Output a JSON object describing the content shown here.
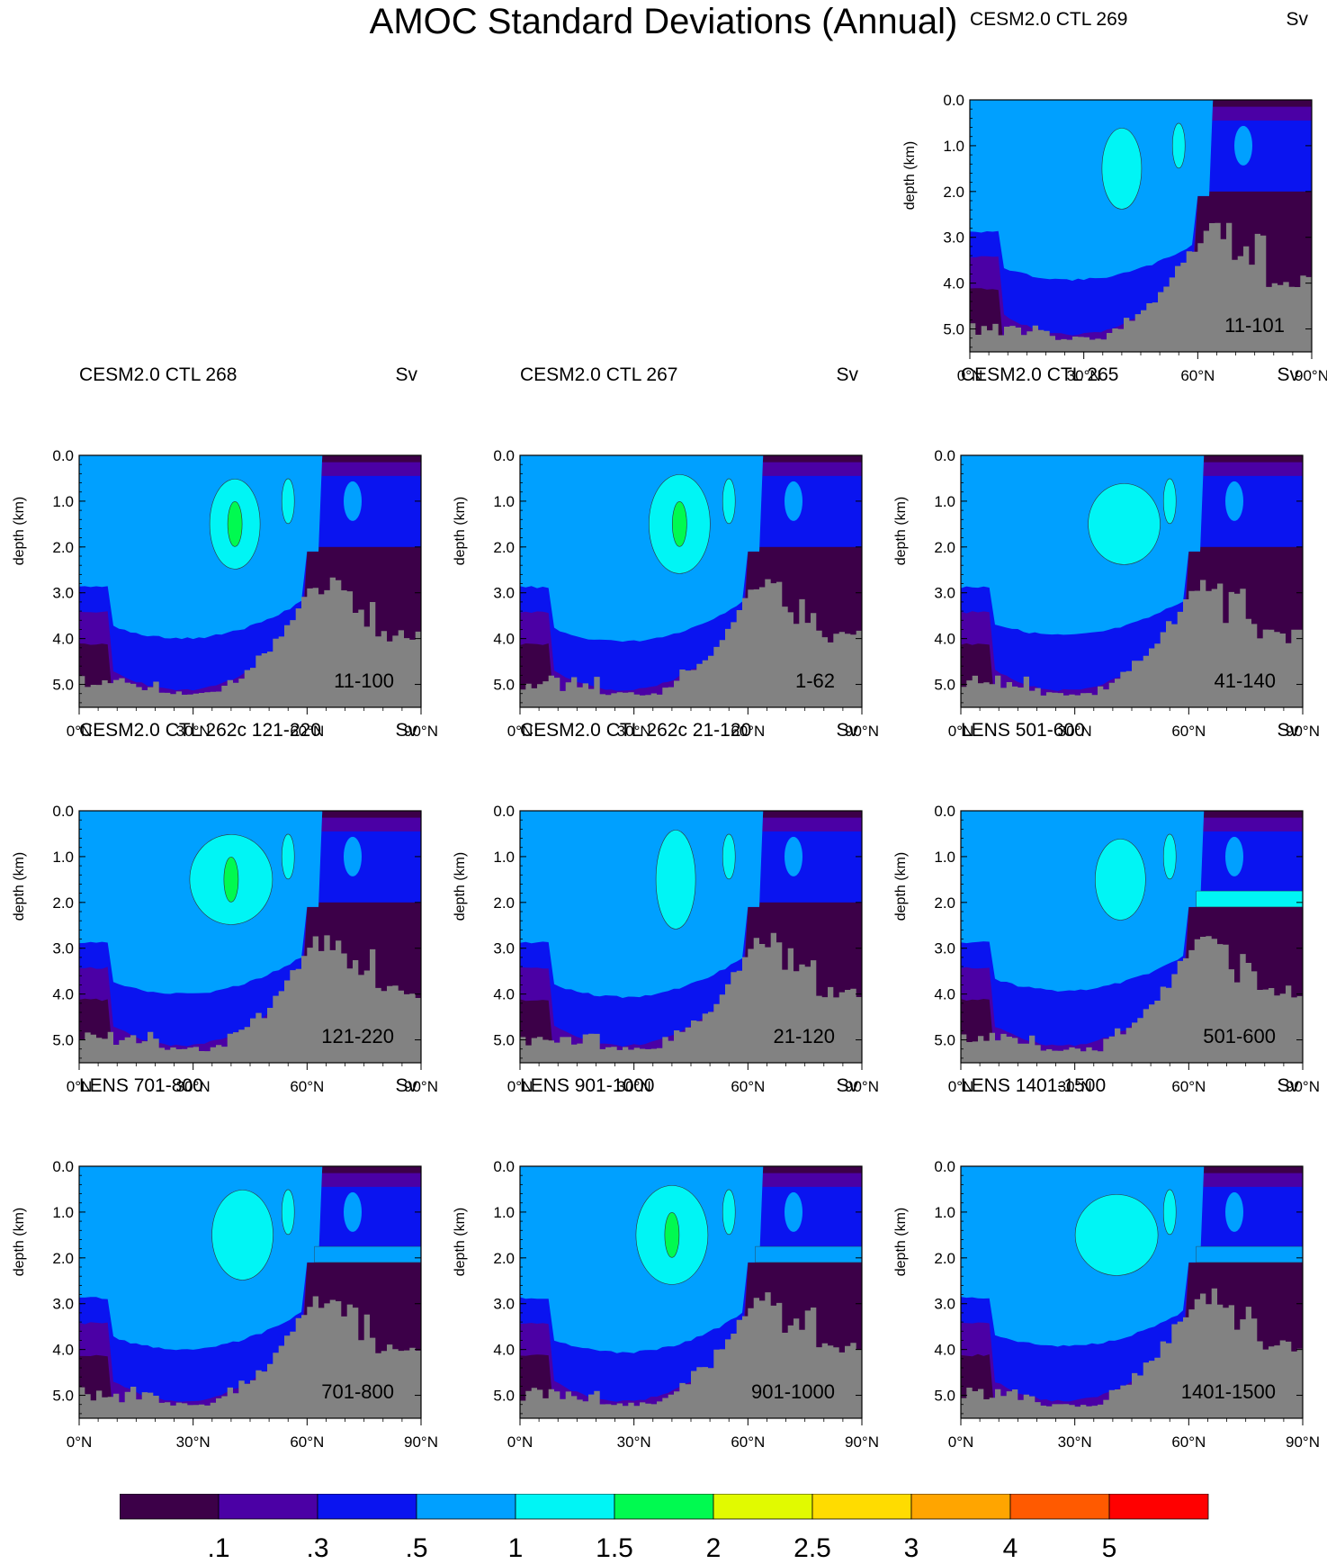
{
  "title": "AMOC Standard Deviations (Annual)",
  "chart_data": {
    "type": "filled-contour",
    "x_axis": {
      "label": "",
      "ticks": [
        "0°N",
        "30°N",
        "60°N",
        "90°N"
      ],
      "range": [
        0,
        90
      ]
    },
    "y_axis": {
      "label": "depth (km)",
      "ticks": [
        "0.0",
        "1.0",
        "2.0",
        "3.0",
        "4.0",
        "5.0"
      ],
      "range": [
        0,
        5.5
      ],
      "inverted": true
    },
    "units": "Sv",
    "panels": [
      {
        "title": "CESM2.0 CTL 269",
        "period": "11-101",
        "units": "Sv",
        "variant": 0
      },
      {
        "title": "CESM2.0 CTL 268",
        "period": "11-100",
        "units": "Sv",
        "variant": 1
      },
      {
        "title": "CESM2.0 CTL 267",
        "period": "1-62",
        "units": "Sv",
        "variant": 2
      },
      {
        "title": "CESM2.0 CTL 265",
        "period": "41-140",
        "units": "Sv",
        "variant": 3
      },
      {
        "title": "CESM2.0 CTL 262c 121-220",
        "period": "121-220",
        "units": "Sv",
        "variant": 4
      },
      {
        "title": "CESM2.0 CTL 262c 21-120",
        "period": "21-120",
        "units": "Sv",
        "variant": 5
      },
      {
        "title": "LENS 501-600",
        "period": "501-600",
        "units": "Sv",
        "variant": 6
      },
      {
        "title": "LENS 701-800",
        "period": "701-800",
        "units": "Sv",
        "variant": 7
      },
      {
        "title": "LENS 901-1000",
        "period": "901-1000",
        "units": "Sv",
        "variant": 8
      },
      {
        "title": "LENS 1401-1500",
        "period": "1401-1500",
        "units": "Sv",
        "variant": 9
      }
    ],
    "colorbar": {
      "labels": [
        ".1",
        ".3",
        ".5",
        "1",
        "1.5",
        "2",
        "2.5",
        "3",
        "4",
        "5"
      ],
      "colors": [
        "#3c0048",
        "#4b00a5",
        "#0a14f0",
        "#00a0ff",
        "#00f5f5",
        "#00fa50",
        "#e1fa00",
        "#ffdc00",
        "#ffa500",
        "#ff5a00",
        "#ff0000"
      ]
    },
    "land_color": "#828282"
  }
}
